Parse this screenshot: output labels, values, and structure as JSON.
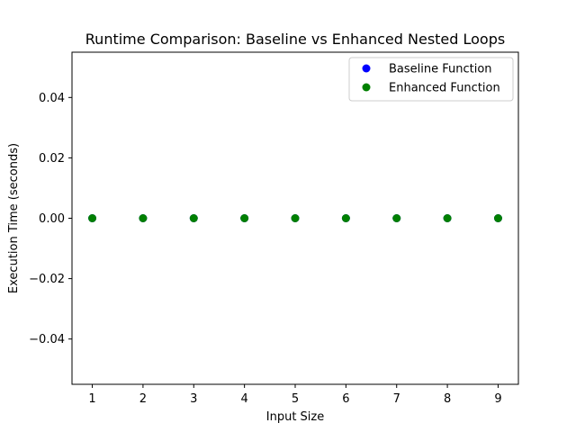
{
  "chart_data": {
    "type": "scatter",
    "title": "Runtime Comparison: Baseline vs Enhanced Nested Loops",
    "xlabel": "Input Size",
    "ylabel": "Execution Time (seconds)",
    "xlim": [
      0.6,
      9.4
    ],
    "ylim": [
      -0.055,
      0.055
    ],
    "xticks": [
      1,
      2,
      3,
      4,
      5,
      6,
      7,
      8,
      9
    ],
    "xtick_labels": [
      "1",
      "2",
      "3",
      "4",
      "5",
      "6",
      "7",
      "8",
      "9"
    ],
    "yticks": [
      -0.04,
      -0.02,
      0.0,
      0.02,
      0.04
    ],
    "ytick_labels": [
      "−0.04",
      "−0.02",
      "0.00",
      "0.02",
      "0.04"
    ],
    "grid": false,
    "legend_position": "top-right",
    "series": [
      {
        "name": "Baseline Function",
        "color": "#0000ff",
        "x": [
          1,
          2,
          3,
          4,
          5,
          6,
          7,
          8,
          9
        ],
        "y": [
          0,
          0,
          0,
          0,
          0,
          0,
          0,
          0,
          0
        ]
      },
      {
        "name": "Enhanced Function",
        "color": "#008000",
        "x": [
          1,
          2,
          3,
          4,
          5,
          6,
          7,
          8,
          9
        ],
        "y": [
          0,
          0,
          0,
          0,
          0,
          0,
          0,
          0,
          0
        ]
      }
    ]
  }
}
